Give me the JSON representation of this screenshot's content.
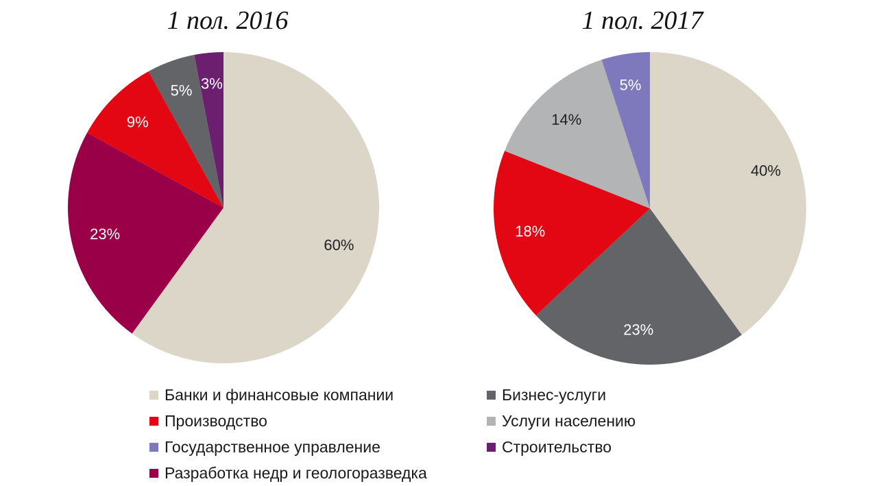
{
  "chart_data": [
    {
      "type": "pie",
      "title": "1 пол. 2016",
      "slices": [
        {
          "name": "Банки и финансовые компании",
          "value": 60,
          "label": "60%",
          "color": "#dcd6c9",
          "label_color": "#222222"
        },
        {
          "name": "Разработка недр и геологоразведка",
          "value": 23,
          "label": "23%",
          "color": "#990047",
          "label_color": "#ffffff"
        },
        {
          "name": "Производство",
          "value": 9,
          "label": "9%",
          "color": "#e30613",
          "label_color": "#ffffff"
        },
        {
          "name": "Бизнес-услуги",
          "value": 5,
          "label": "5%",
          "color": "#636468",
          "label_color": "#ffffff"
        },
        {
          "name": "Строительство",
          "value": 3,
          "label": "3%",
          "color": "#6b1f6e",
          "label_color": "#ffffff"
        }
      ]
    },
    {
      "type": "pie",
      "title": "1 пол. 2017",
      "slices": [
        {
          "name": "Банки и финансовые компании",
          "value": 40,
          "label": "40%",
          "color": "#dcd6c9",
          "label_color": "#222222"
        },
        {
          "name": "Бизнес-услуги",
          "value": 23,
          "label": "23%",
          "color": "#636468",
          "label_color": "#ffffff"
        },
        {
          "name": "Производство",
          "value": 18,
          "label": "18%",
          "color": "#e30613",
          "label_color": "#ffffff"
        },
        {
          "name": "Услуги населению",
          "value": 14,
          "label": "14%",
          "color": "#b3b4b6",
          "label_color": "#222222"
        },
        {
          "name": "Государственное управление",
          "value": 5,
          "label": "5%",
          "color": "#7d79bc",
          "label_color": "#ffffff"
        }
      ]
    }
  ],
  "legend": [
    {
      "label": "Банки и финансовые компании",
      "color": "#dcd6c9"
    },
    {
      "label": "Бизнес-услуги",
      "color": "#636468"
    },
    {
      "label": "Производство",
      "color": "#e30613"
    },
    {
      "label": "Услуги населению",
      "color": "#b3b4b6"
    },
    {
      "label": "Государственное управление",
      "color": "#7d79bc"
    },
    {
      "label": "Строительство",
      "color": "#6b1f6e"
    },
    {
      "label": "Разработка недр и геологоразведка",
      "color": "#990047"
    }
  ]
}
